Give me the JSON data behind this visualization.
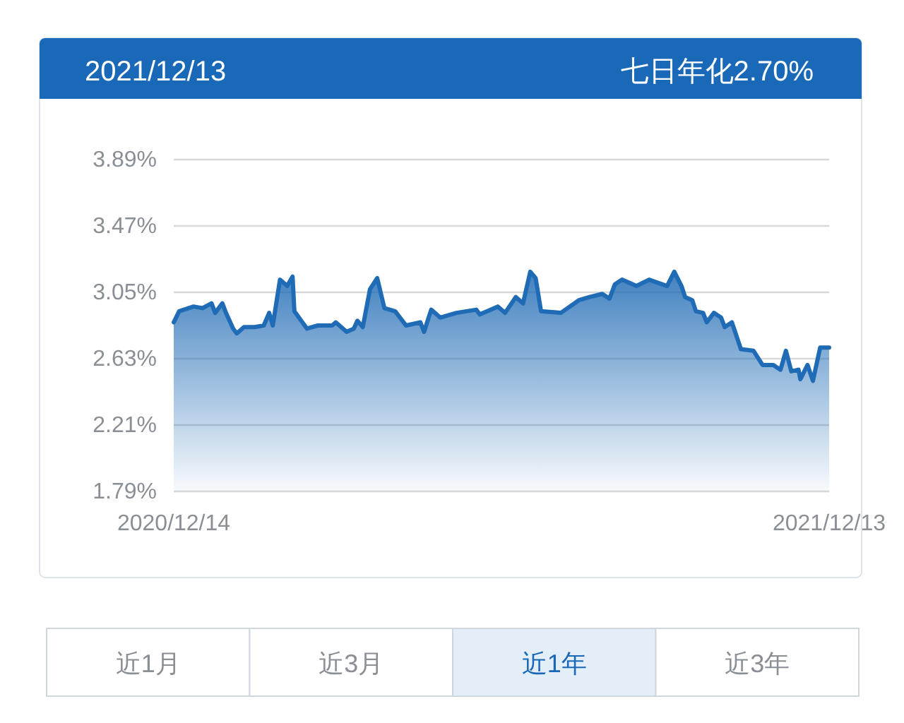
{
  "chart_data": {
    "type": "area",
    "title": "2021/12/13",
    "subtitle": "七日年化2.70%",
    "x": [
      "2020-12-14",
      "2020-12-17",
      "2020-12-25",
      "2020-12-30",
      "2021-01-04",
      "2021-01-06",
      "2021-01-10",
      "2021-01-12",
      "2021-01-16",
      "2021-01-18",
      "2021-01-22",
      "2021-01-28",
      "2021-02-02",
      "2021-02-05",
      "2021-02-07",
      "2021-02-11",
      "2021-02-15",
      "2021-02-18",
      "2021-02-19",
      "2021-02-26",
      "2021-03-04",
      "2021-03-12",
      "2021-03-14",
      "2021-03-20",
      "2021-03-24",
      "2021-03-26",
      "2021-03-29",
      "2021-04-02",
      "2021-04-06",
      "2021-04-10",
      "2021-04-16",
      "2021-04-22",
      "2021-04-30",
      "2021-05-02",
      "2021-05-06",
      "2021-05-11",
      "2021-05-20",
      "2021-05-31",
      "2021-06-02",
      "2021-06-12",
      "2021-06-16",
      "2021-06-22",
      "2021-06-26",
      "2021-06-30",
      "2021-07-03",
      "2021-07-06",
      "2021-07-17",
      "2021-07-27",
      "2021-08-02",
      "2021-08-09",
      "2021-08-13",
      "2021-08-16",
      "2021-08-20",
      "2021-08-28",
      "2021-09-04",
      "2021-09-14",
      "2021-09-18",
      "2021-09-22",
      "2021-09-24",
      "2021-09-28",
      "2021-09-30",
      "2021-10-04",
      "2021-10-06",
      "2021-10-10",
      "2021-10-14",
      "2021-10-16",
      "2021-10-20",
      "2021-10-25",
      "2021-11-01",
      "2021-11-06",
      "2021-11-12",
      "2021-11-16",
      "2021-11-19",
      "2021-11-22",
      "2021-11-26",
      "2021-11-27",
      "2021-12-01",
      "2021-12-04",
      "2021-12-08",
      "2021-12-13"
    ],
    "series": [
      {
        "color": "#1f6bb5",
        "values": [
          2.86,
          2.93,
          2.96,
          2.95,
          2.98,
          2.92,
          2.98,
          2.92,
          2.82,
          2.79,
          2.83,
          2.83,
          2.84,
          2.92,
          2.84,
          3.13,
          3.09,
          3.15,
          2.93,
          2.82,
          2.84,
          2.84,
          2.86,
          2.8,
          2.82,
          2.87,
          2.83,
          3.07,
          3.14,
          2.95,
          2.93,
          2.84,
          2.86,
          2.8,
          2.94,
          2.89,
          2.92,
          2.94,
          2.91,
          2.96,
          2.92,
          3.02,
          2.98,
          3.18,
          3.14,
          2.93,
          2.92,
          3.0,
          3.02,
          3.04,
          3.01,
          3.1,
          3.13,
          3.09,
          3.13,
          3.09,
          3.18,
          3.09,
          3.02,
          3.0,
          2.93,
          2.92,
          2.86,
          2.92,
          2.89,
          2.83,
          2.86,
          2.69,
          2.68,
          2.59,
          2.59,
          2.56,
          2.68,
          2.55,
          2.56,
          2.5,
          2.59,
          2.49,
          2.7,
          2.7
        ]
      }
    ],
    "xlim": [
      "2020-12-14",
      "2021-12-13"
    ],
    "xticks": [
      {
        "value": "2020-12-14",
        "label": "2020/12/14"
      },
      {
        "value": "2021-12-13",
        "label": "2021/12/13"
      }
    ],
    "ylim": [
      1.79,
      3.89
    ],
    "yticks": [
      {
        "value": 1.79,
        "label": "1.79%"
      },
      {
        "value": 2.21,
        "label": "2.21%"
      },
      {
        "value": 2.63,
        "label": "2.63%"
      },
      {
        "value": 3.05,
        "label": "3.05%"
      },
      {
        "value": 3.47,
        "label": "3.47%"
      },
      {
        "value": 3.89,
        "label": "3.89%"
      }
    ],
    "grid": "y",
    "marker": "none",
    "line_style": "solid",
    "annotations": [
      "近1月",
      "近3月",
      "近1年",
      "近3年"
    ]
  }
}
